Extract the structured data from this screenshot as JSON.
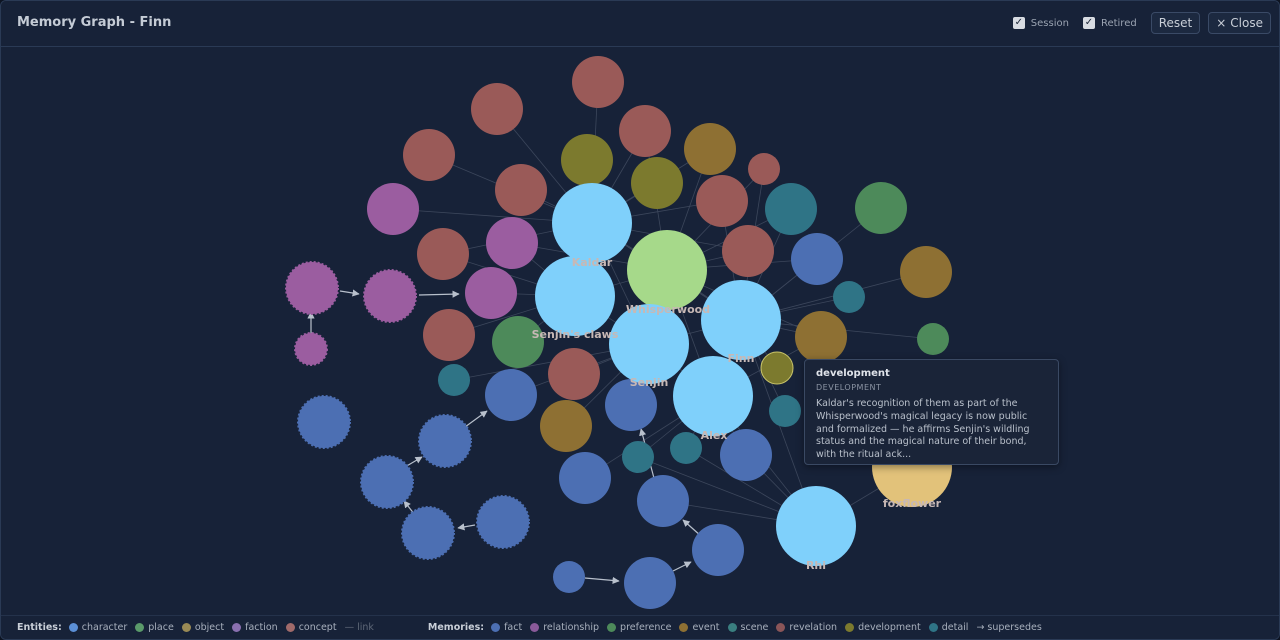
{
  "window": {
    "title": "Memory Graph - Finn"
  },
  "controls": {
    "session_label": "Session",
    "session_checked": true,
    "retired_label": "Retired",
    "retired_checked": true,
    "reset_label": "Reset",
    "close_label": "Close",
    "close_icon": "×"
  },
  "colors": {
    "character": "#7fd0fb",
    "place": "#63a46a",
    "object": "#9a7a3a",
    "faction": "#9b5da0",
    "concept": "#a35e59",
    "fact": "#4c6fb3",
    "relationship": "#9b5da0",
    "preference": "#4d8a5a",
    "event": "#8e7033",
    "scene": "#36808c",
    "revelation": "#9a5a58",
    "development": "#7c7a2e",
    "detail": "#2f7486"
  },
  "graph": {
    "labels": {
      "kaldar": "Kaldar",
      "whisperwood": "Whisperwood",
      "senjins_claws": "Senjin's claws",
      "senjin": "Senjin",
      "finn": "Finn",
      "alex": "Alex",
      "rhi": "Rhi",
      "foxflower": "foxflower"
    }
  },
  "tooltip": {
    "title": "development",
    "subtitle": "DEVELOPMENT",
    "body": "Kaldar's recognition of them as part of the Whisperwood's magical legacy is now public and formalized — he affirms Senjin's wildling status and the magical nature of their bond, with the ritual ack..."
  },
  "legend": {
    "entities_title": "Entities:",
    "entities": [
      {
        "label": "character",
        "color": "#5b8fd6"
      },
      {
        "label": "place",
        "color": "#5a9a6a"
      },
      {
        "label": "object",
        "color": "#9a8a55"
      },
      {
        "label": "faction",
        "color": "#8a70b0"
      },
      {
        "label": "concept",
        "color": "#a06a6a"
      }
    ],
    "link_label": "— link",
    "memories_title": "Memories:",
    "memories": [
      {
        "label": "fact",
        "color": "#4c6fb3"
      },
      {
        "label": "relationship",
        "color": "#8a5a9a"
      },
      {
        "label": "preference",
        "color": "#4d8a5a"
      },
      {
        "label": "event",
        "color": "#8e7033"
      },
      {
        "label": "scene",
        "color": "#3a7f80"
      },
      {
        "label": "revelation",
        "color": "#8a5558"
      },
      {
        "label": "development",
        "color": "#7c7a2e"
      },
      {
        "label": "detail",
        "color": "#2f7486"
      }
    ],
    "supersedes_label": "→ supersedes"
  }
}
